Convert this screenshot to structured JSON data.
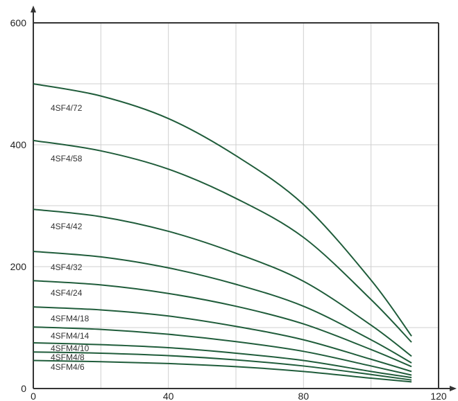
{
  "chart_data": {
    "type": "line",
    "title": "",
    "xlabel": "",
    "ylabel": "",
    "xlim": [
      0,
      120
    ],
    "ylim": [
      0,
      600
    ],
    "x_ticks": [
      "0",
      "40",
      "80",
      "120"
    ],
    "y_ticks": [
      "0",
      "200",
      "400",
      "600"
    ],
    "grid": true,
    "line_color": "#1f5c3a",
    "grid_color": "#cfcfcf",
    "axis_color": "#333333",
    "series": [
      {
        "name": "4SF4/72",
        "x": [
          0,
          20,
          40,
          60,
          80,
          100,
          112
        ],
        "y": [
          500,
          480,
          443,
          382,
          302,
          178,
          86
        ]
      },
      {
        "name": "4SF4/58",
        "x": [
          0,
          20,
          40,
          60,
          80,
          100,
          112
        ],
        "y": [
          407,
          390,
          360,
          312,
          248,
          146,
          76
        ]
      },
      {
        "name": "4SF4/42",
        "x": [
          0,
          20,
          40,
          60,
          80,
          100,
          112
        ],
        "y": [
          294,
          282,
          258,
          222,
          176,
          104,
          53
        ]
      },
      {
        "name": "4SF4/32",
        "x": [
          0,
          20,
          40,
          60,
          80,
          100,
          112
        ],
        "y": [
          225,
          216,
          198,
          171,
          135,
          80,
          42
        ]
      },
      {
        "name": "4SF4/24",
        "x": [
          0,
          20,
          40,
          60,
          80,
          100,
          112
        ],
        "y": [
          177,
          170,
          156,
          135,
          106,
          64,
          36
        ]
      },
      {
        "name": "4SFM4/18",
        "x": [
          0,
          20,
          40,
          60,
          80,
          100,
          112
        ],
        "y": [
          134,
          129,
          119,
          102,
          80,
          48,
          28
        ]
      },
      {
        "name": "4SFM4/14",
        "x": [
          0,
          20,
          40,
          60,
          80,
          100,
          112
        ],
        "y": [
          101,
          97,
          89,
          77,
          61,
          37,
          22
        ]
      },
      {
        "name": "4SFM4/10",
        "x": [
          0,
          20,
          40,
          60,
          80,
          100,
          112
        ],
        "y": [
          75,
          72,
          67,
          58,
          46,
          28,
          18
        ]
      },
      {
        "name": "4SFM4/8",
        "x": [
          0,
          20,
          40,
          60,
          80,
          100,
          112
        ],
        "y": [
          60,
          58,
          54,
          47,
          37,
          23,
          14
        ]
      },
      {
        "name": "4SFM4/6",
        "x": [
          0,
          20,
          40,
          60,
          80,
          100,
          112
        ],
        "y": [
          46,
          44,
          41,
          36,
          28,
          17,
          11
        ]
      }
    ]
  }
}
